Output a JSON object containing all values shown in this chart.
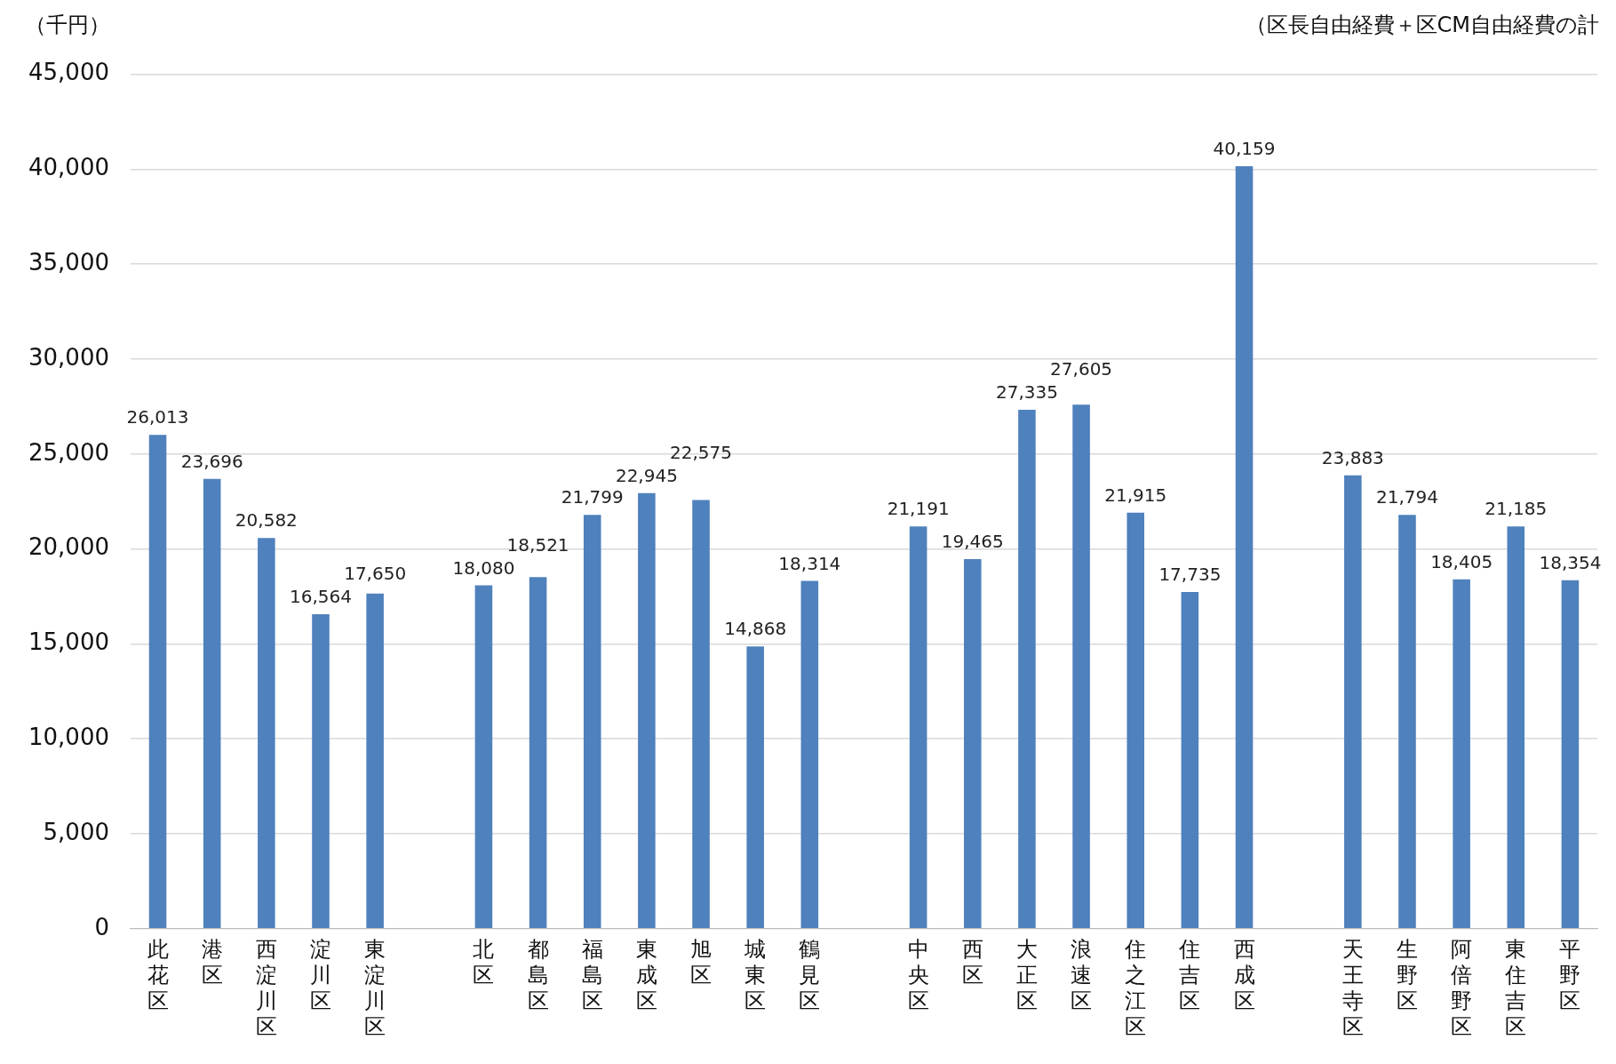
{
  "chart_data": {
    "type": "bar",
    "ylabel": "（千円）",
    "annotations": [
      "（区長自由経費＋区CM自由経費の計"
    ],
    "categories": [
      "此花区",
      "港区",
      "西淀川区",
      "淀川区",
      "東淀川区",
      null,
      "北区",
      "都島区",
      "福島区",
      "東成区",
      "旭区",
      "城東区",
      "鶴見区",
      null,
      "中央区",
      "西区",
      "大正区",
      "浪速区",
      "住之江区",
      "住吉区",
      "西成区",
      null,
      "天王寺区",
      "生野区",
      "阿倍野区",
      "東住吉区",
      "平野区"
    ],
    "values": [
      26013,
      23696,
      20582,
      16564,
      17650,
      null,
      18080,
      18521,
      21799,
      22945,
      22575,
      14868,
      18314,
      null,
      21191,
      19465,
      27335,
      27605,
      21915,
      17735,
      40159,
      null,
      23883,
      21794,
      18405,
      21185,
      18354
    ],
    "value_labels": [
      "26,013",
      "23,696",
      "20,582",
      "16,564",
      "17,650",
      null,
      "18,080",
      "18,521",
      "21,799",
      "22,945",
      "22,575",
      "14,868",
      "18,314",
      null,
      "21,191",
      "19,465",
      "27,335",
      "27,605",
      "21,915",
      "17,735",
      "40,159",
      null,
      "23,883",
      "21,794",
      "18,405",
      "21,185",
      "18,354"
    ],
    "color": "#4f81bd",
    "ylim": [
      0,
      45000
    ],
    "yticks": [
      0,
      {
        "value": 5000,
        "label": "5,000"
      },
      {
        "value": 10000,
        "label": "10,000"
      },
      {
        "value": 15000,
        "label": "15,000"
      },
      {
        "value": 20000,
        "label": "20,000"
      },
      {
        "value": 25000,
        "label": "25,000"
      },
      {
        "value": 30000,
        "label": "30,000"
      },
      {
        "value": 35000,
        "label": "35,000"
      },
      {
        "value": 40000,
        "label": "40,000"
      },
      {
        "value": 45000,
        "label": "45,000"
      }
    ],
    "grid": "y"
  }
}
